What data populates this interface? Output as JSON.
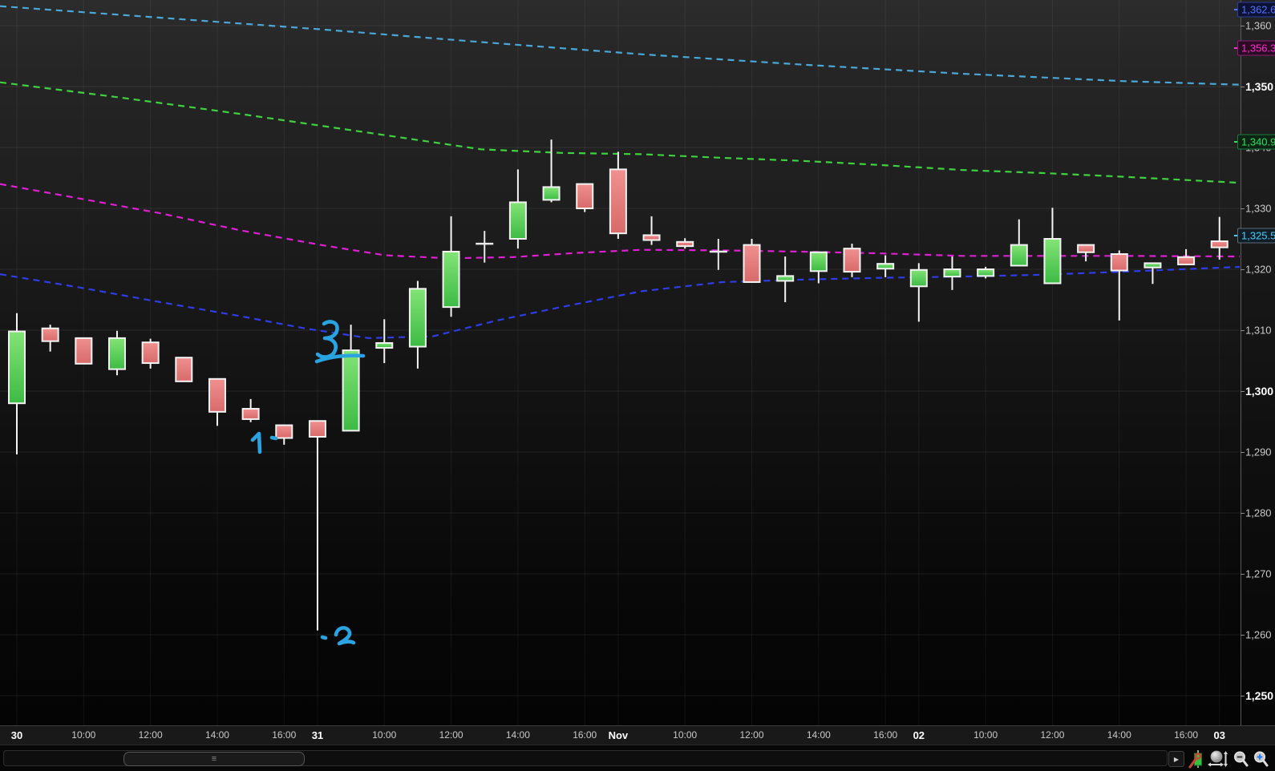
{
  "chart_data": {
    "type": "candlestick",
    "bar_interval": "1 hour",
    "y_axis": {
      "min": 1250,
      "max": 1360,
      "step": 10,
      "bold_step": 50,
      "tick_labels": [
        "1,360",
        "1,350",
        "1,340",
        "1,330",
        "1,320",
        "1,310",
        "1,300",
        "1,290",
        "1,280",
        "1,270",
        "1,260",
        "1,250"
      ]
    },
    "x_ticks": [
      {
        "i": 0,
        "label": "30",
        "bold": true
      },
      {
        "i": 2,
        "label": "10:00",
        "bold": false
      },
      {
        "i": 4,
        "label": "12:00",
        "bold": false
      },
      {
        "i": 6,
        "label": "14:00",
        "bold": false
      },
      {
        "i": 8,
        "label": "16:00",
        "bold": false
      },
      {
        "i": 9,
        "label": "31",
        "bold": true
      },
      {
        "i": 11,
        "label": "10:00",
        "bold": false
      },
      {
        "i": 13,
        "label": "12:00",
        "bold": false
      },
      {
        "i": 15,
        "label": "14:00",
        "bold": false
      },
      {
        "i": 17,
        "label": "16:00",
        "bold": false
      },
      {
        "i": 18,
        "label": "Nov",
        "bold": true
      },
      {
        "i": 20,
        "label": "10:00",
        "bold": false
      },
      {
        "i": 22,
        "label": "12:00",
        "bold": false
      },
      {
        "i": 24,
        "label": "14:00",
        "bold": false
      },
      {
        "i": 26,
        "label": "16:00",
        "bold": false
      },
      {
        "i": 27,
        "label": "02",
        "bold": true
      },
      {
        "i": 29,
        "label": "10:00",
        "bold": false
      },
      {
        "i": 31,
        "label": "12:00",
        "bold": false
      },
      {
        "i": 33,
        "label": "14:00",
        "bold": false
      },
      {
        "i": 35,
        "label": "16:00",
        "bold": false
      },
      {
        "i": 36,
        "label": "03",
        "bold": true
      }
    ],
    "candles": [
      {
        "t": "Oct30 08:00",
        "o": 1298.0,
        "h": 1312.8,
        "l": 1289.6,
        "c": 1309.8,
        "dir": "up"
      },
      {
        "t": "Oct30 09:00",
        "o": 1310.3,
        "h": 1310.9,
        "l": 1306.5,
        "c": 1308.2,
        "dir": "down"
      },
      {
        "t": "Oct30 10:00",
        "o": 1308.7,
        "h": 1308.7,
        "l": 1304.5,
        "c": 1304.5,
        "dir": "down"
      },
      {
        "t": "Oct30 11:00",
        "o": 1303.6,
        "h": 1309.9,
        "l": 1302.6,
        "c": 1308.7,
        "dir": "up"
      },
      {
        "t": "Oct30 12:00",
        "o": 1308.0,
        "h": 1308.6,
        "l": 1303.7,
        "c": 1304.6,
        "dir": "down"
      },
      {
        "t": "Oct30 13:00",
        "o": 1305.5,
        "h": 1305.5,
        "l": 1301.6,
        "c": 1301.6,
        "dir": "down"
      },
      {
        "t": "Oct30 14:00",
        "o": 1302.0,
        "h": 1302.0,
        "l": 1294.3,
        "c": 1296.6,
        "dir": "down"
      },
      {
        "t": "Oct30 15:00",
        "o": 1297.1,
        "h": 1298.7,
        "l": 1294.9,
        "c": 1295.4,
        "dir": "down"
      },
      {
        "t": "Oct30 16:00",
        "o": 1294.4,
        "h": 1294.4,
        "l": 1291.2,
        "c": 1292.3,
        "dir": "down"
      },
      {
        "t": "Oct31 08:00",
        "o": 1295.1,
        "h": 1295.1,
        "l": 1260.7,
        "c": 1292.5,
        "dir": "down"
      },
      {
        "t": "Oct31 09:00",
        "o": 1293.5,
        "h": 1310.9,
        "l": 1293.5,
        "c": 1306.7,
        "dir": "up"
      },
      {
        "t": "Oct31 10:00",
        "o": 1307.1,
        "h": 1311.8,
        "l": 1304.6,
        "c": 1307.9,
        "dir": "up"
      },
      {
        "t": "Oct31 11:00",
        "o": 1307.3,
        "h": 1318.1,
        "l": 1303.7,
        "c": 1316.8,
        "dir": "up"
      },
      {
        "t": "Oct31 12:00",
        "o": 1313.8,
        "h": 1328.7,
        "l": 1312.2,
        "c": 1322.9,
        "dir": "up"
      },
      {
        "t": "Oct31 13:00",
        "o": 1324.2,
        "h": 1326.3,
        "l": 1321.1,
        "c": 1324.2,
        "dir": "doji"
      },
      {
        "t": "Oct31 14:00",
        "o": 1325.0,
        "h": 1336.4,
        "l": 1323.4,
        "c": 1331.0,
        "dir": "up"
      },
      {
        "t": "Oct31 15:00",
        "o": 1331.4,
        "h": 1341.3,
        "l": 1331.0,
        "c": 1333.5,
        "dir": "up"
      },
      {
        "t": "Oct31 16:00",
        "o": 1334.0,
        "h": 1334.0,
        "l": 1329.4,
        "c": 1330.0,
        "dir": "down"
      },
      {
        "t": "Nov01 08:00",
        "o": 1336.4,
        "h": 1339.3,
        "l": 1325.0,
        "c": 1325.9,
        "dir": "down"
      },
      {
        "t": "Nov01 09:00",
        "o": 1325.6,
        "h": 1328.7,
        "l": 1324.0,
        "c": 1324.8,
        "dir": "down"
      },
      {
        "t": "Nov01 10:00",
        "o": 1324.5,
        "h": 1325.1,
        "l": 1323.4,
        "c": 1323.8,
        "dir": "down"
      },
      {
        "t": "Nov01 11:00",
        "o": 1322.9,
        "h": 1325.0,
        "l": 1319.9,
        "c": 1322.9,
        "dir": "doji"
      },
      {
        "t": "Nov01 12:00",
        "o": 1324.0,
        "h": 1325.0,
        "l": 1317.9,
        "c": 1317.9,
        "dir": "down"
      },
      {
        "t": "Nov01 13:00",
        "o": 1318.1,
        "h": 1322.1,
        "l": 1314.6,
        "c": 1318.9,
        "dir": "up"
      },
      {
        "t": "Nov01 14:00",
        "o": 1319.7,
        "h": 1322.8,
        "l": 1317.7,
        "c": 1322.8,
        "dir": "up"
      },
      {
        "t": "Nov01 15:00",
        "o": 1323.4,
        "h": 1324.2,
        "l": 1318.7,
        "c": 1319.6,
        "dir": "down"
      },
      {
        "t": "Nov01 16:00",
        "o": 1320.1,
        "h": 1322.3,
        "l": 1318.7,
        "c": 1320.9,
        "dir": "up"
      },
      {
        "t": "Nov02 08:00",
        "o": 1317.2,
        "h": 1321.0,
        "l": 1311.4,
        "c": 1319.9,
        "dir": "up"
      },
      {
        "t": "Nov02 09:00",
        "o": 1318.8,
        "h": 1322.1,
        "l": 1316.6,
        "c": 1320.0,
        "dir": "up"
      },
      {
        "t": "Nov02 10:00",
        "o": 1318.9,
        "h": 1320.4,
        "l": 1318.5,
        "c": 1320.0,
        "dir": "up"
      },
      {
        "t": "Nov02 11:00",
        "o": 1320.6,
        "h": 1328.2,
        "l": 1320.6,
        "c": 1324.0,
        "dir": "up"
      },
      {
        "t": "Nov02 12:00",
        "o": 1317.7,
        "h": 1330.1,
        "l": 1317.7,
        "c": 1325.0,
        "dir": "up"
      },
      {
        "t": "Nov02 13:00",
        "o": 1324.0,
        "h": 1324.0,
        "l": 1321.3,
        "c": 1322.8,
        "dir": "down"
      },
      {
        "t": "Nov02 14:00",
        "o": 1322.5,
        "h": 1323.1,
        "l": 1311.6,
        "c": 1319.8,
        "dir": "down"
      },
      {
        "t": "Nov02 15:00",
        "o": 1320.3,
        "h": 1321.0,
        "l": 1317.6,
        "c": 1321.0,
        "dir": "up"
      },
      {
        "t": "Nov02 16:00",
        "o": 1322.0,
        "h": 1323.3,
        "l": 1320.8,
        "c": 1320.8,
        "dir": "down"
      },
      {
        "t": "Nov03 08:00",
        "o": 1324.6,
        "h": 1328.6,
        "l": 1321.6,
        "c": 1323.6,
        "dir": "down"
      }
    ],
    "overlay_lines": [
      {
        "name": "upper-band-cyan",
        "color": "#4aa8d8",
        "style": "dashed",
        "points": [
          [
            0,
            1363.2
          ],
          [
            200,
            1361.3
          ],
          [
            400,
            1359.4
          ],
          [
            600,
            1357.3
          ],
          [
            800,
            1355.3
          ],
          [
            1000,
            1353.6
          ],
          [
            1200,
            1352.1
          ],
          [
            1400,
            1350.9
          ],
          [
            1546,
            1350.3
          ]
        ]
      },
      {
        "name": "upper-band-green",
        "color": "#3fd23f",
        "style": "dashed",
        "points": [
          [
            0,
            1350.7
          ],
          [
            150,
            1348.2
          ],
          [
            300,
            1345.5
          ],
          [
            450,
            1342.6
          ],
          [
            600,
            1339.7
          ],
          [
            700,
            1339.1
          ],
          [
            800,
            1338.9
          ],
          [
            900,
            1338.3
          ],
          [
            1000,
            1337.8
          ],
          [
            1100,
            1337.1
          ],
          [
            1200,
            1336.3
          ],
          [
            1300,
            1335.8
          ],
          [
            1400,
            1335.2
          ],
          [
            1546,
            1334.2
          ]
        ]
      },
      {
        "name": "midline-magenta",
        "color": "#e01fd5",
        "style": "dashed",
        "points": [
          [
            0,
            1334.0
          ],
          [
            100,
            1331.6
          ],
          [
            200,
            1329.2
          ],
          [
            300,
            1326.4
          ],
          [
            400,
            1324.0
          ],
          [
            480,
            1322.3
          ],
          [
            560,
            1321.8
          ],
          [
            640,
            1322.0
          ],
          [
            720,
            1322.7
          ],
          [
            800,
            1323.2
          ],
          [
            900,
            1323.1
          ],
          [
            1000,
            1322.9
          ],
          [
            1100,
            1322.6
          ],
          [
            1200,
            1322.2
          ],
          [
            1300,
            1322.2
          ],
          [
            1400,
            1322.2
          ],
          [
            1546,
            1322.1
          ]
        ]
      },
      {
        "name": "lower-band-blue",
        "color": "#2e3de8",
        "style": "dashed",
        "points": [
          [
            0,
            1319.2
          ],
          [
            100,
            1317.0
          ],
          [
            200,
            1314.6
          ],
          [
            300,
            1312.3
          ],
          [
            380,
            1310.3
          ],
          [
            460,
            1308.7
          ],
          [
            540,
            1309.0
          ],
          [
            620,
            1311.6
          ],
          [
            700,
            1313.8
          ],
          [
            800,
            1316.4
          ],
          [
            900,
            1317.9
          ],
          [
            1000,
            1318.3
          ],
          [
            1100,
            1318.6
          ],
          [
            1200,
            1318.8
          ],
          [
            1300,
            1319.1
          ],
          [
            1400,
            1319.6
          ],
          [
            1546,
            1320.4
          ]
        ]
      }
    ],
    "price_tags": [
      {
        "text": "1,362.6",
        "value": 1362.6,
        "fg": "#5672ff",
        "bg": "#0c1233",
        "border": "#2c3f9e"
      },
      {
        "text": "1,356.3",
        "value": 1356.3,
        "fg": "#ff2ad4",
        "bg": "#2b0a24",
        "border": "#8e1d77"
      },
      {
        "text": "1,340.9",
        "value": 1340.9,
        "fg": "#2ee05e",
        "bg": "#0a2413",
        "border": "#1d7c3c"
      },
      {
        "text": "1,325.5",
        "value": 1325.5,
        "fg": "#3fd0ff",
        "bg": "#101c26",
        "border": "#5a6b78"
      }
    ],
    "annotations": {
      "color": "#2aa4e0",
      "items": [
        {
          "label": "1",
          "near_price": 1291,
          "near_time": "Oct30 15:00"
        },
        {
          "label": "2",
          "near_price": 1262,
          "near_time": "Oct31 08:00 wick low"
        },
        {
          "label": "3",
          "near_price": 1310,
          "near_time": "Oct31 09:00",
          "note": "with horizontal strike mark"
        }
      ]
    },
    "colors": {
      "up_candle": "#4ecb4e",
      "down_candle": "#e57f7f",
      "candle_border": "#f2f2f2",
      "doji": "#e8e8e8"
    }
  },
  "toolbar": {
    "scroll_thumb_grip": "≡",
    "scroll_end_arrow": "▶",
    "icons": [
      "chart-settings",
      "pan-zoom",
      "zoom-out",
      "zoom-in"
    ]
  }
}
